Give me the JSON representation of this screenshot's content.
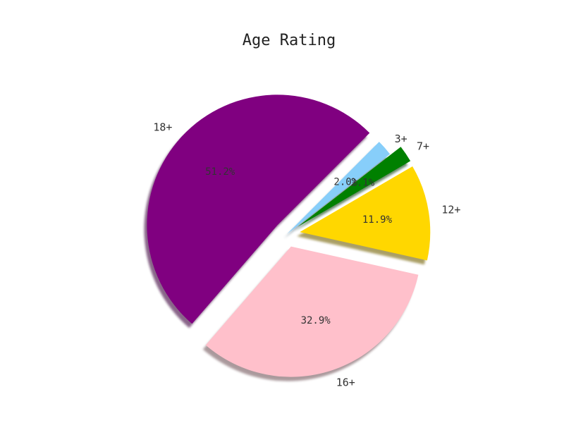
{
  "chart_data": {
    "type": "pie",
    "title": "Age Rating",
    "categories": [
      "18+",
      "16+",
      "12+",
      "7+",
      "3+"
    ],
    "values": [
      51.2,
      32.9,
      11.9,
      2.1,
      2.0
    ],
    "labels": [
      "51.2%",
      "32.9%",
      "11.9%",
      "2.1%",
      "2.0%"
    ],
    "colors": [
      "#800080",
      "#FFC0CB",
      "#FFD700",
      "#008000",
      "#87CEFA"
    ],
    "exploded": [
      true,
      true,
      true,
      true,
      false
    ],
    "start_angle_deg": 45,
    "shadow": true
  }
}
